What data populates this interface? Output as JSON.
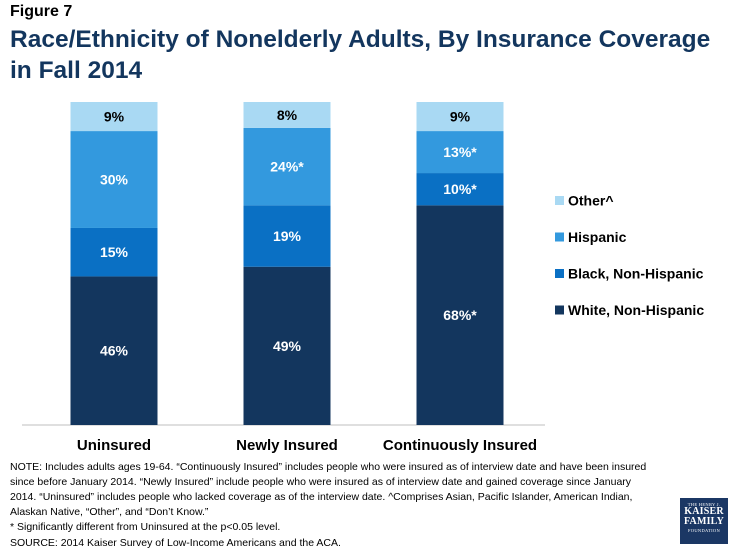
{
  "figure_label": "Figure 7",
  "chart_data": {
    "type": "stacked_bar",
    "title": "Race/Ethnicity of Nonelderly Adults, By Insurance Coverage in Fall 2014",
    "categories": [
      "Uninsured",
      "Newly Insured",
      "Continuously Insured"
    ],
    "series": [
      {
        "name": "White, Non-Hispanic",
        "color": "#13365e",
        "values": [
          46,
          49,
          68
        ],
        "labels": [
          "46%",
          "49%",
          "68%*"
        ]
      },
      {
        "name": "Black, Non-Hispanic",
        "color": "#0a70c4",
        "values": [
          15,
          19,
          10
        ],
        "labels": [
          "15%",
          "19%",
          "10%*"
        ]
      },
      {
        "name": "Hispanic",
        "color": "#3399de",
        "values": [
          30,
          24,
          13
        ],
        "labels": [
          "30%",
          "24%*",
          "13%*"
        ]
      },
      {
        "name": "Other^",
        "color": "#a9d9f3",
        "values": [
          9,
          8,
          9
        ],
        "labels": [
          "9%",
          "8%",
          "9%"
        ]
      }
    ],
    "legend_order": [
      "Other^",
      "Hispanic",
      "Black, Non-Hispanic",
      "White, Non-Hispanic"
    ],
    "legend_position": "right",
    "ylim": [
      0,
      100
    ],
    "xlabel": "",
    "ylabel": ""
  },
  "notes": {
    "line1": "NOTE: Includes adults ages 19-64. “Continuously Insured” includes people who were insured as of interview date and have been insured since before January 2014. “Newly Insured” include people who were insured as of interview date and gained coverage since January 2014. “Uninsured” includes people who lacked coverage as of the interview date. ^Comprises Asian, Pacific Islander, American Indian, Alaskan Native, “Other”, and “Don’t Know.”",
    "line2": "* Significantly different from Uninsured at the p<0.05 level.",
    "line3": "SOURCE: 2014 Kaiser Survey of Low-Income Americans and the ACA."
  },
  "logo": {
    "line1": "THE HENRY J.",
    "line2": "KAISER",
    "line3": "FAMILY",
    "line4": "FOUNDATION"
  }
}
